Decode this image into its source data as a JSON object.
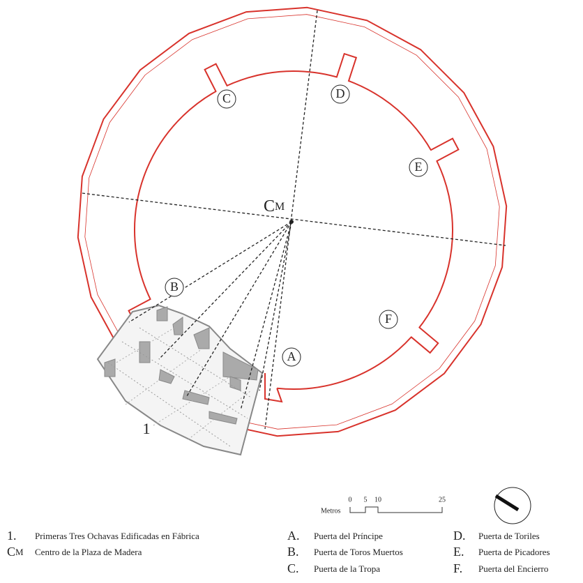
{
  "plan": {
    "gates": [
      "A",
      "B",
      "C",
      "D",
      "E",
      "F"
    ],
    "center_label": {
      "letter": "C",
      "sub": "M"
    },
    "section_label": "1"
  },
  "scale": {
    "unit": "Metros",
    "ticks": [
      0,
      5,
      10,
      25
    ]
  },
  "legend": [
    {
      "key": "1.",
      "text": "Primeras Tres Ochavas Edificadas en Fábrica"
    },
    {
      "key": "C",
      "key_sub": "M",
      "text": "Centro de la Plaza de Madera"
    },
    {
      "key": "A.",
      "text": "Puerta del Príncipe"
    },
    {
      "key": "B.",
      "text": "Puerta de Toros Muertos"
    },
    {
      "key": "C.",
      "text": "Puerta de la Tropa"
    },
    {
      "key": "D.",
      "text": "Puerta de Toriles"
    },
    {
      "key": "E.",
      "text": "Puerta de Picadores"
    },
    {
      "key": "F.",
      "text": "Puerta del Encierro"
    }
  ]
}
